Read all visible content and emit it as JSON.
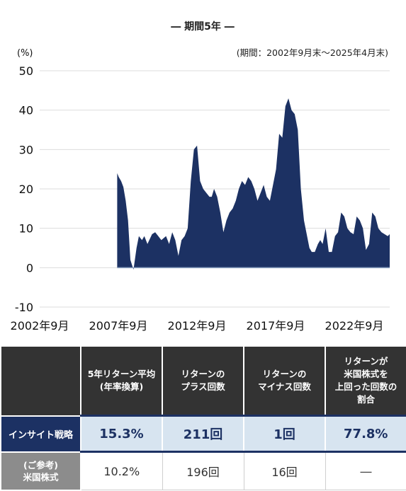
{
  "chart_data": {
    "type": "area",
    "title": "― 期間5年 ―",
    "subtitle": "(期間：2002年9月末～2025年4月末)",
    "ylabel": "(%)",
    "ylim": [
      -10,
      50
    ],
    "yticks": [
      "50",
      "40",
      "30",
      "20",
      "10",
      "0",
      "-10"
    ],
    "xticks": [
      "2002年9月",
      "2007年9月",
      "2012年9月",
      "2017年9月",
      "2022年9月"
    ],
    "xlim": [
      2002.75,
      2025.33
    ],
    "grid": true,
    "color": "#1c3163",
    "x": [
      2007.75,
      2007.85,
      2008.0,
      2008.15,
      2008.3,
      2008.45,
      2008.6,
      2008.8,
      2009.0,
      2009.15,
      2009.35,
      2009.5,
      2009.7,
      2010.0,
      2010.2,
      2010.4,
      2010.6,
      2010.9,
      2011.1,
      2011.3,
      2011.5,
      2011.7,
      2011.9,
      2012.1,
      2012.3,
      2012.5,
      2012.7,
      2012.9,
      2013.1,
      2013.3,
      2013.5,
      2013.7,
      2013.85,
      2014.0,
      2014.2,
      2014.4,
      2014.6,
      2014.8,
      2015.0,
      2015.2,
      2015.4,
      2015.6,
      2015.8,
      2016.0,
      2016.2,
      2016.4,
      2016.6,
      2016.8,
      2017.0,
      2017.2,
      2017.4,
      2017.6,
      2017.8,
      2018.0,
      2018.2,
      2018.4,
      2018.6,
      2018.8,
      2019.0,
      2019.2,
      2019.4,
      2019.6,
      2019.8,
      2020.0,
      2020.15,
      2020.3,
      2020.5,
      2020.7,
      2020.85,
      2021.0,
      2021.2,
      2021.4,
      2021.6,
      2021.8,
      2022.0,
      2022.2,
      2022.4,
      2022.6,
      2022.8,
      2023.0,
      2023.2,
      2023.4,
      2023.6,
      2023.8,
      2024.0,
      2024.2,
      2024.4,
      2024.6,
      2024.8,
      2025.0,
      2025.2,
      2025.33
    ],
    "y": [
      24,
      23,
      22,
      20.5,
      17,
      12,
      2,
      -0.5,
      5,
      8,
      7,
      8,
      6,
      8.5,
      9,
      8,
      7,
      8,
      6,
      9,
      7,
      3,
      7,
      8,
      10,
      22,
      30,
      31,
      22,
      20,
      19,
      18,
      18,
      20,
      18,
      14,
      9,
      12,
      14,
      15,
      17,
      20,
      22,
      21,
      23,
      22,
      20,
      17,
      19,
      21,
      18,
      17,
      21,
      25,
      34,
      33,
      41,
      43,
      40,
      39,
      35,
      20,
      12,
      8,
      5,
      4,
      4,
      6,
      7,
      6,
      10,
      4,
      4,
      8,
      9,
      14,
      13,
      10,
      9,
      8.5,
      13,
      12,
      10,
      4.5,
      6,
      14,
      13,
      10,
      9,
      8.5,
      8,
      8.5
    ]
  },
  "table": {
    "headers": [
      "",
      "5年リターン平均\n(年率換算)",
      "リターンの\nプラス回数",
      "リターンの\nマイナス回数",
      "リターンが\n米国株式を\n上回った回数の\n割合"
    ],
    "rows": [
      {
        "label": "インサイト戦略",
        "values": [
          "15.3%",
          "211回",
          "1回",
          "77.8%"
        ]
      },
      {
        "label": "(ご参考)\n米国株式",
        "values": [
          "10.2%",
          "196回",
          "16回",
          "―"
        ]
      }
    ]
  }
}
